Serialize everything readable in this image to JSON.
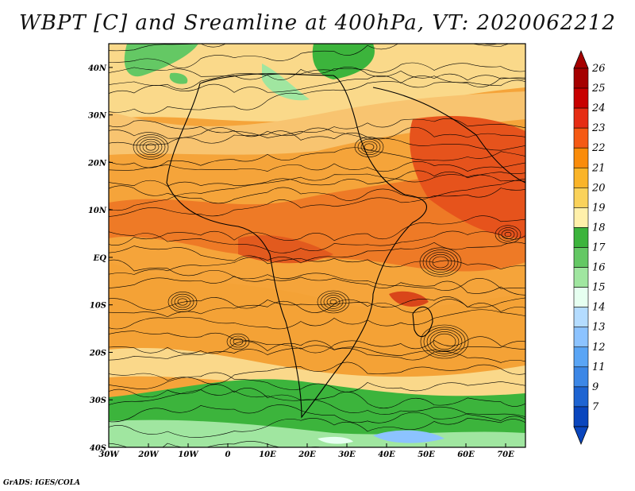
{
  "title": "WBPT [C] and Sreamline at 400hPa, VT: 2020062212",
  "credit": "GrADS: IGES/COLA",
  "map": {
    "lat_ticks": [
      "40N",
      "30N",
      "20N",
      "10N",
      "EQ",
      "10S",
      "20S",
      "30S",
      "40S"
    ],
    "lon_ticks": [
      "30W",
      "20W",
      "10W",
      "0",
      "10E",
      "20E",
      "30E",
      "40E",
      "50E",
      "60E",
      "70E"
    ],
    "lon_range": [
      -30,
      75
    ],
    "lat_range": [
      -40,
      45
    ]
  },
  "colorbar": {
    "labels": [
      "26",
      "25",
      "24",
      "23",
      "22",
      "21",
      "20",
      "19",
      "18",
      "17",
      "16",
      "15",
      "14",
      "13",
      "12",
      "11",
      "9",
      "7"
    ],
    "colors": [
      "#a50000",
      "#c80000",
      "#e62d14",
      "#f55a14",
      "#fa8c0a",
      "#fab428",
      "#fad25a",
      "#fff0aa",
      "#3cb43c",
      "#64c864",
      "#a0e6a0",
      "#e6fff0",
      "#b4dcff",
      "#8cc3ff",
      "#5aa5f5",
      "#3c87e6",
      "#1e64d2",
      "#0a46be"
    ],
    "top_color": "#a50000",
    "bottom_color": "#0a46be"
  }
}
